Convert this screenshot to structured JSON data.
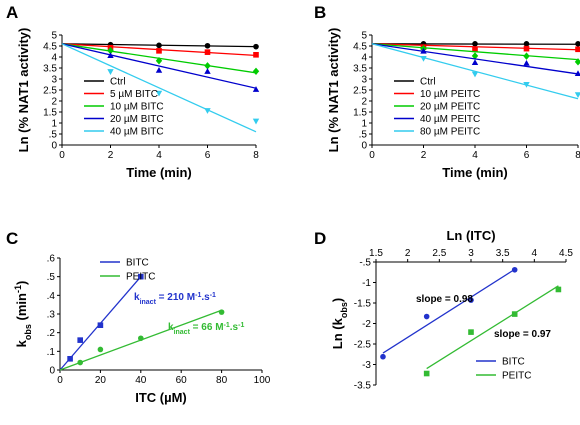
{
  "chart_data": [
    {
      "panel": "A",
      "type": "scatter",
      "xlabel": "Time (min)",
      "ylabel": "Ln (% NAT1 activity)",
      "xlim": [
        0,
        8
      ],
      "ylim": [
        0,
        5
      ],
      "xticks": [
        0,
        2,
        4,
        6,
        8
      ],
      "yticks": [
        0,
        0.5,
        1,
        1.5,
        2,
        2.5,
        3,
        3.5,
        4,
        4.5,
        5
      ],
      "legend_position": "bottom-left",
      "series": [
        {
          "name": "Ctrl",
          "color": "#000000",
          "marker": "circle",
          "x": [
            2,
            4,
            6,
            8
          ],
          "y": [
            4.56,
            4.53,
            4.51,
            4.47
          ],
          "fit": [
            [
              0,
              4.6
            ],
            [
              8,
              4.47
            ]
          ]
        },
        {
          "name": "5 µM BITC",
          "color": "#ff0000",
          "marker": "square",
          "x": [
            2,
            4,
            6,
            8
          ],
          "y": [
            4.42,
            4.28,
            4.22,
            4.1
          ],
          "fit": [
            [
              0,
              4.6
            ],
            [
              8,
              4.07
            ]
          ]
        },
        {
          "name": "10 µM BITC",
          "color": "#00cc00",
          "marker": "diamond",
          "x": [
            2,
            4,
            6,
            8
          ],
          "y": [
            4.29,
            3.83,
            3.6,
            3.35
          ],
          "fit": [
            [
              0,
              4.6
            ],
            [
              8,
              3.28
            ]
          ]
        },
        {
          "name": "20 µM BITC",
          "color": "#0000cc",
          "marker": "triangle",
          "x": [
            2,
            4,
            6,
            8
          ],
          "y": [
            4.07,
            3.4,
            3.35,
            2.53
          ],
          "fit": [
            [
              0,
              4.6
            ],
            [
              8,
              2.58
            ]
          ]
        },
        {
          "name": "40 µM BITC",
          "color": "#33ccee",
          "marker": "triangle-down",
          "x": [
            2,
            4,
            6,
            8
          ],
          "y": [
            3.33,
            2.35,
            1.56,
            1.08
          ],
          "fit": [
            [
              0,
              4.6
            ],
            [
              8,
              0.6
            ]
          ]
        }
      ]
    },
    {
      "panel": "B",
      "type": "scatter",
      "xlabel": "Time (min)",
      "ylabel": "Ln (% NAT1 activity)",
      "xlim": [
        0,
        8
      ],
      "ylim": [
        0,
        5
      ],
      "xticks": [
        0,
        2,
        4,
        6,
        8
      ],
      "yticks": [
        0,
        0.5,
        1,
        1.5,
        2,
        2.5,
        3,
        3.5,
        4,
        4.5,
        5
      ],
      "legend_position": "bottom-left",
      "series": [
        {
          "name": "Ctrl",
          "color": "#000000",
          "marker": "circle",
          "x": [
            2,
            4,
            6,
            8
          ],
          "y": [
            4.6,
            4.6,
            4.6,
            4.6
          ],
          "fit": [
            [
              0,
              4.6
            ],
            [
              8,
              4.58
            ]
          ]
        },
        {
          "name": "10 µM PEITC",
          "color": "#ff0000",
          "marker": "square",
          "x": [
            2,
            4,
            6,
            8
          ],
          "y": [
            4.45,
            4.35,
            4.38,
            4.35
          ],
          "fit": [
            [
              0,
              4.6
            ],
            [
              8,
              4.33
            ]
          ]
        },
        {
          "name": "20 µM PEITC",
          "color": "#00cc00",
          "marker": "diamond",
          "x": [
            2,
            4,
            6,
            8
          ],
          "y": [
            4.38,
            4.05,
            4.04,
            3.78
          ],
          "fit": [
            [
              0,
              4.6
            ],
            [
              8,
              3.88
            ]
          ]
        },
        {
          "name": "40 µM PEITC",
          "color": "#0000cc",
          "marker": "triangle",
          "x": [
            2,
            4,
            6,
            8
          ],
          "y": [
            4.27,
            3.75,
            3.72,
            3.25
          ],
          "fit": [
            [
              0,
              4.6
            ],
            [
              8,
              3.23
            ]
          ]
        },
        {
          "name": "80 µM PEITC",
          "color": "#33ccee",
          "marker": "triangle-down",
          "x": [
            2,
            4,
            6,
            8
          ],
          "y": [
            3.93,
            3.22,
            2.75,
            2.28
          ],
          "fit": [
            [
              0,
              4.6
            ],
            [
              8,
              2.1
            ]
          ]
        }
      ]
    },
    {
      "panel": "C",
      "type": "scatter",
      "xlabel": "ITC (µM)",
      "ylabel_main": "k",
      "ylabel_sub": "obs",
      "ylabel_unit": " (min",
      "ylabel_sup": "-1",
      "ylabel_close": ")",
      "xlim": [
        0,
        100
      ],
      "ylim": [
        0,
        0.6
      ],
      "xticks": [
        0,
        20,
        40,
        60,
        80,
        100
      ],
      "yticks": [
        0,
        0.1,
        0.2,
        0.3,
        0.4,
        0.5,
        0.6
      ],
      "legend_position": "top-center",
      "series": [
        {
          "name": "BITC",
          "color": "#2233cc",
          "marker": "square",
          "x": [
            5,
            10,
            20,
            40
          ],
          "y": [
            0.06,
            0.16,
            0.24,
            0.5
          ],
          "fit": [
            [
              0,
              0
            ],
            [
              40,
              0.5
            ]
          ]
        },
        {
          "name": "PEITC",
          "color": "#33bb33",
          "marker": "circle",
          "x": [
            10,
            20,
            40,
            80
          ],
          "y": [
            0.04,
            0.11,
            0.17,
            0.31
          ],
          "fit": [
            [
              0,
              0
            ],
            [
              80,
              0.32
            ]
          ]
        }
      ],
      "annotations": [
        {
          "series": "BITC",
          "prefix": "k",
          "sub": "inact",
          "text": " = 210 M",
          "sup": "-1",
          "tail": ".s",
          "sup2": "-1"
        },
        {
          "series": "PEITC",
          "prefix": "k",
          "sub": "inact",
          "text": " = 66 M",
          "sup": "-1",
          "tail": ".s",
          "sup2": "-1"
        }
      ]
    },
    {
      "panel": "D",
      "type": "scatter",
      "xlabel": "Ln (ITC)",
      "ylabel_main": "Ln (k",
      "ylabel_sub": "obs",
      "ylabel_close": ")",
      "xlim": [
        1.5,
        4.5
      ],
      "ylim": [
        -3.5,
        -0.5
      ],
      "xticks": [
        1.5,
        2,
        2.5,
        3,
        3.5,
        4,
        4.5
      ],
      "yticks": [
        -3.5,
        -3,
        -2.5,
        -2,
        -1.5,
        -1,
        -0.5
      ],
      "x_axis_position": "top",
      "legend_position": "bottom-right",
      "series": [
        {
          "name": "BITC",
          "color": "#2233cc",
          "marker": "circle",
          "x": [
            1.61,
            2.3,
            3.0,
            3.69
          ],
          "y": [
            -2.81,
            -1.83,
            -1.43,
            -0.69
          ],
          "fit": [
            [
              1.61,
              -2.72
            ],
            [
              3.69,
              -0.68
            ]
          ]
        },
        {
          "name": "PEITC",
          "color": "#33bb33",
          "marker": "square",
          "x": [
            2.3,
            3.0,
            3.69,
            4.38
          ],
          "y": [
            -3.22,
            -2.21,
            -1.77,
            -1.17
          ],
          "fit": [
            [
              2.3,
              -3.1
            ],
            [
              4.38,
              -1.08
            ]
          ]
        }
      ],
      "annotations": [
        {
          "text": "slope = 0.98",
          "series": "BITC"
        },
        {
          "text": "slope = 0.97",
          "series": "PEITC"
        }
      ]
    }
  ]
}
